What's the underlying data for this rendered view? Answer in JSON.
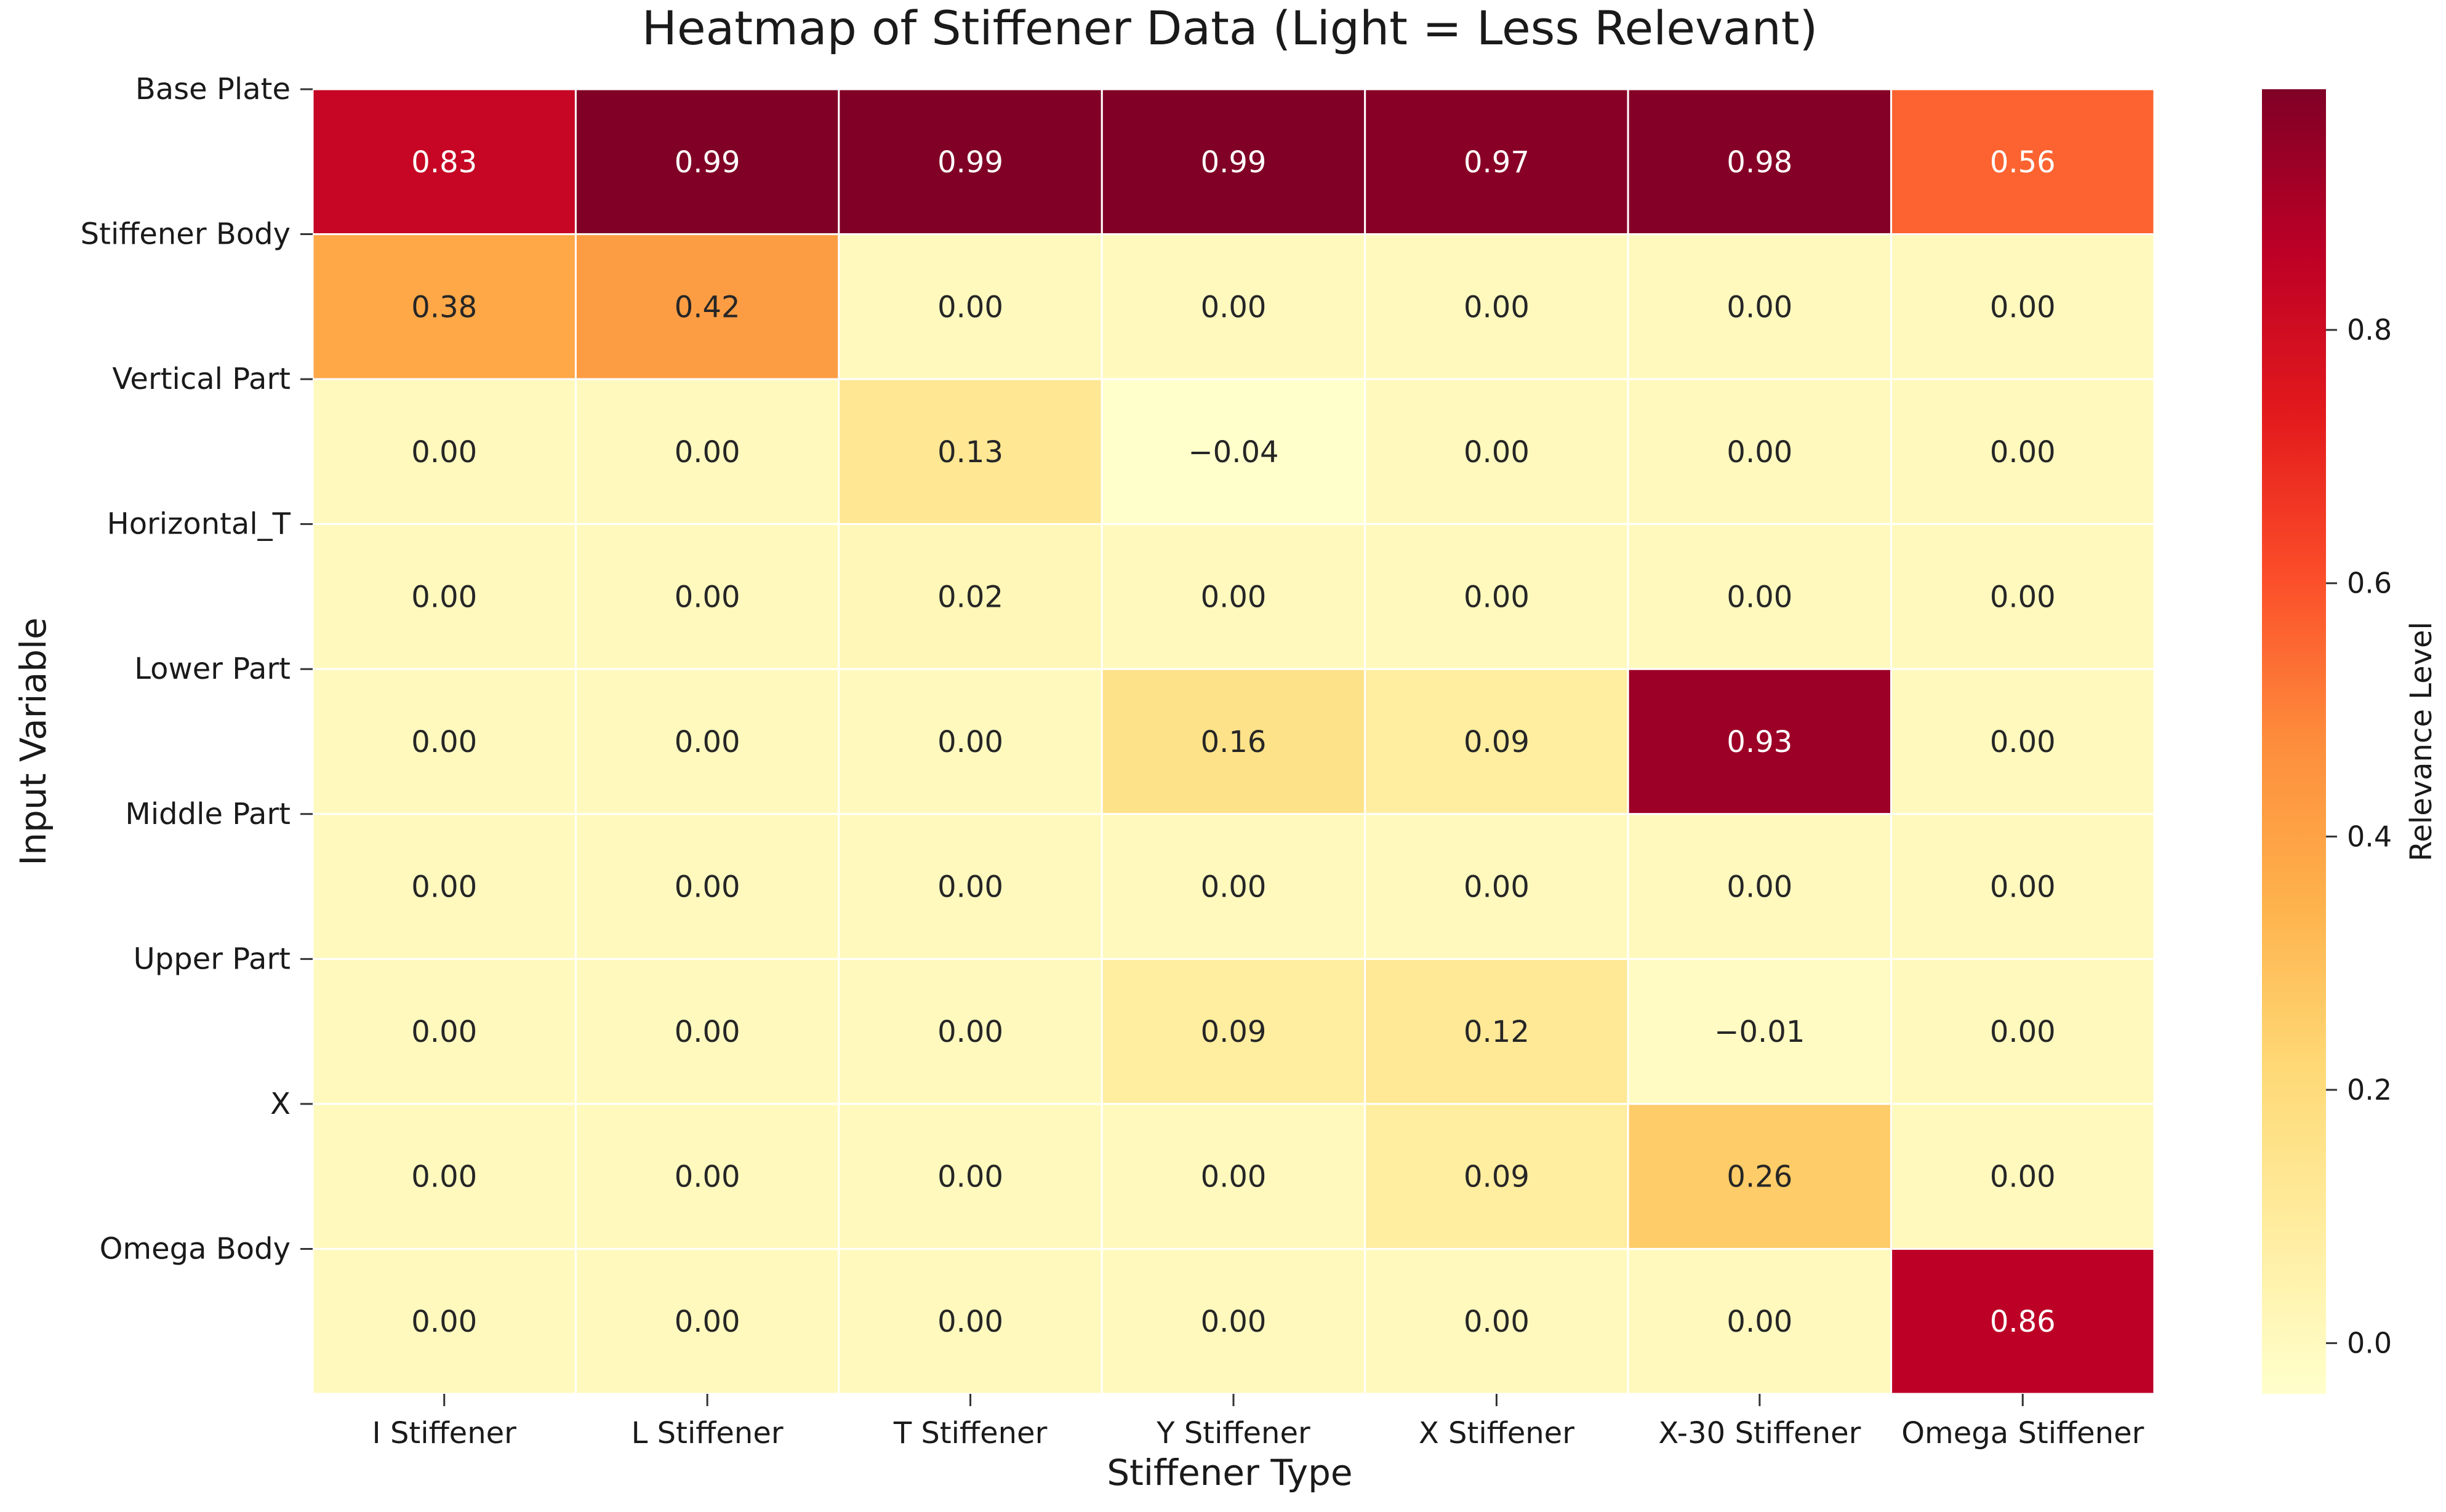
{
  "chart_data": {
    "type": "heatmap",
    "title": "Heatmap of Stiffener Data (Light = Less Relevant)",
    "xlabel": "Stiffener Type",
    "ylabel": "Input Variable",
    "x_categories": [
      "I Stiffener",
      "L Stiffener",
      "T Stiffener",
      "Y Stiffener",
      "X Stiffener",
      "X-30 Stiffener",
      "Omega Stiffener"
    ],
    "y_categories": [
      "Base Plate",
      "Stiffener Body",
      "Vertical Part",
      "Horizontal_T",
      "Lower Part",
      "Middle Part",
      "Upper Part",
      "X",
      "Omega Body"
    ],
    "values": [
      [
        0.83,
        0.99,
        0.99,
        0.99,
        0.97,
        0.98,
        0.56
      ],
      [
        0.38,
        0.42,
        0.0,
        0.0,
        0.0,
        0.0,
        0.0
      ],
      [
        0.0,
        0.0,
        0.13,
        -0.04,
        0.0,
        0.0,
        0.0
      ],
      [
        0.0,
        0.0,
        0.02,
        0.0,
        0.0,
        0.0,
        0.0
      ],
      [
        0.0,
        0.0,
        0.0,
        0.16,
        0.09,
        0.93,
        0.0
      ],
      [
        0.0,
        0.0,
        0.0,
        0.0,
        0.0,
        0.0,
        0.0
      ],
      [
        0.0,
        0.0,
        0.0,
        0.09,
        0.12,
        -0.01,
        0.0
      ],
      [
        0.0,
        0.0,
        0.0,
        0.0,
        0.09,
        0.26,
        0.0
      ],
      [
        0.0,
        0.0,
        0.0,
        0.0,
        0.0,
        0.0,
        0.86
      ]
    ],
    "cell_labels": [
      [
        "0.83",
        "0.99",
        "0.99",
        "0.99",
        "0.97",
        "0.98",
        "0.56"
      ],
      [
        "0.38",
        "0.42",
        "0.00",
        "0.00",
        "0.00",
        "0.00",
        "0.00"
      ],
      [
        "0.00",
        "0.00",
        "0.13",
        "−0.04",
        "0.00",
        "0.00",
        "0.00"
      ],
      [
        "0.00",
        "0.00",
        "0.02",
        "0.00",
        "0.00",
        "0.00",
        "0.00"
      ],
      [
        "0.00",
        "0.00",
        "0.00",
        "0.16",
        "0.09",
        "0.93",
        "0.00"
      ],
      [
        "0.00",
        "0.00",
        "0.00",
        "0.00",
        "0.00",
        "0.00",
        "0.00"
      ],
      [
        "0.00",
        "0.00",
        "0.00",
        "0.09",
        "0.12",
        "−0.01",
        "0.00"
      ],
      [
        "0.00",
        "0.00",
        "0.00",
        "0.00",
        "0.09",
        "0.26",
        "0.00"
      ],
      [
        "0.00",
        "0.00",
        "0.00",
        "0.00",
        "0.00",
        "0.00",
        "0.86"
      ]
    ],
    "colorbar": {
      "label": "Relevance Level",
      "vmin": -0.04,
      "vmax": 0.99,
      "ticks": [
        0.0,
        0.2,
        0.4,
        0.6,
        0.8
      ],
      "tick_labels": [
        "0.0",
        "0.2",
        "0.4",
        "0.6",
        "0.8"
      ],
      "colormap": "YlOrRd",
      "colormap_stops": [
        "#ffffcc",
        "#ffeda0",
        "#fed976",
        "#feb24c",
        "#fd8d3c",
        "#fc4e2a",
        "#e31a1c",
        "#bd0026",
        "#800026"
      ]
    }
  }
}
